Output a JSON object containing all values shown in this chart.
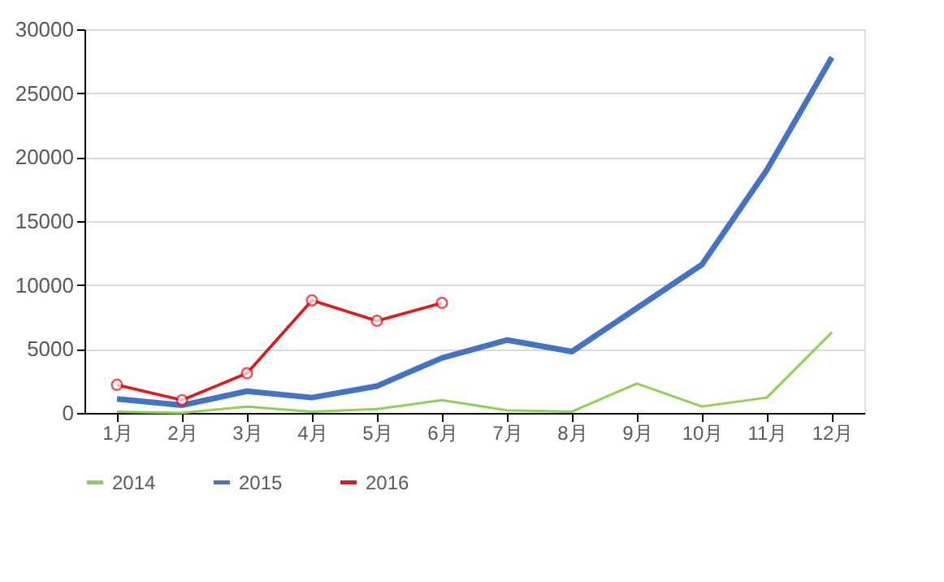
{
  "chart_data": {
    "type": "line",
    "categories": [
      "1月",
      "2月",
      "3月",
      "4月",
      "5月",
      "6月",
      "7月",
      "8月",
      "9月",
      "10月",
      "11月",
      "12月"
    ],
    "series": [
      {
        "name": "2014",
        "color": "#92d050",
        "values": [
          100,
          0,
          500,
          100,
          300,
          1000,
          200,
          100,
          2300,
          500,
          1200,
          6300
        ],
        "marker": "none"
      },
      {
        "name": "2015",
        "color": "#4472c4",
        "values": [
          1100,
          600,
          1700,
          1200,
          2100,
          4300,
          5700,
          4800,
          8200,
          11600,
          19000,
          27800
        ],
        "marker": "none"
      },
      {
        "name": "2016",
        "color": "#e3161b",
        "values": [
          2200,
          1000,
          3100,
          8800,
          7200,
          8600,
          null,
          null,
          null,
          null,
          null,
          null
        ],
        "marker": "circle"
      }
    ],
    "ylim": [
      0,
      30000
    ],
    "yticks": [
      0,
      5000,
      10000,
      15000,
      20000,
      25000,
      30000
    ],
    "grid": "y",
    "legend": "bottom",
    "line_style": "solid"
  }
}
